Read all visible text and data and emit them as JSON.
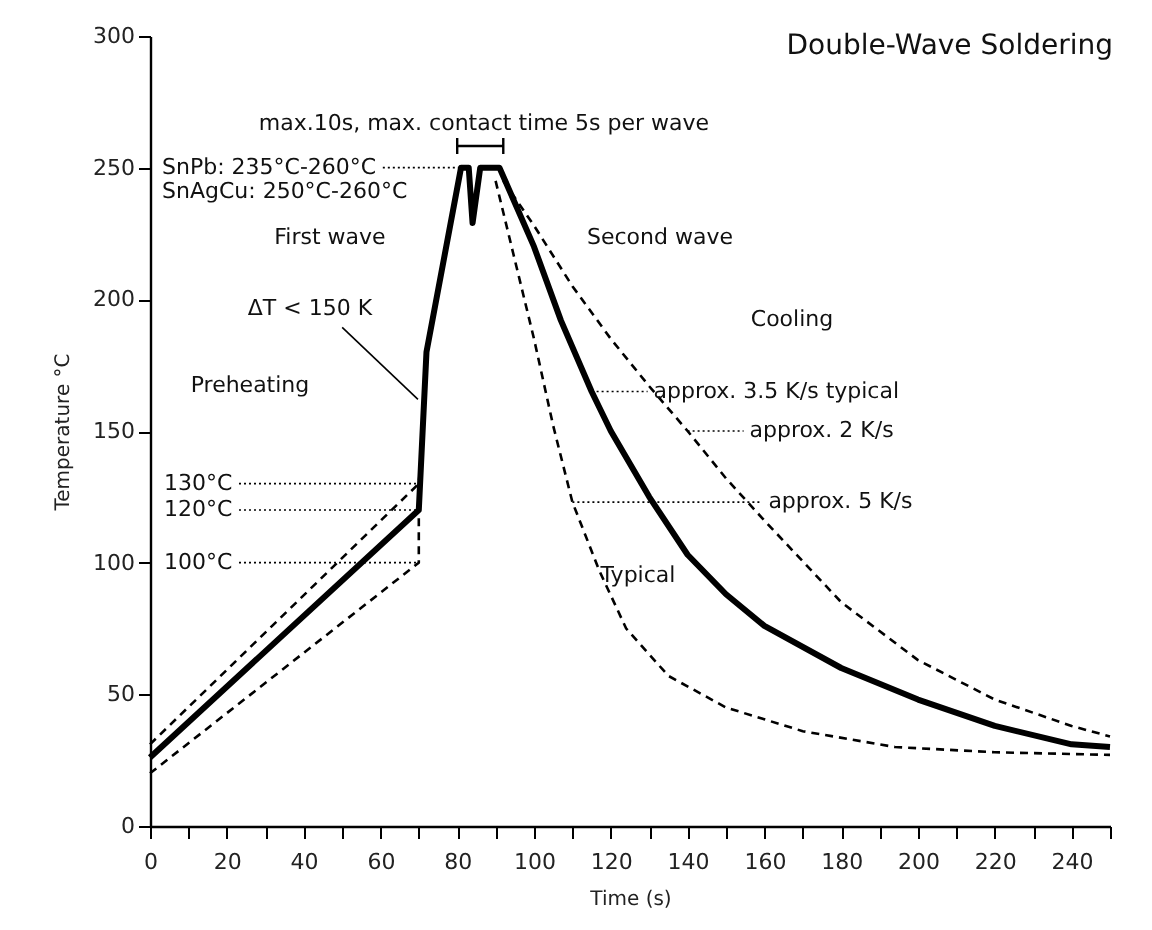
{
  "chart_data": {
    "type": "line",
    "title": "Double-Wave Soldering",
    "xlabel": "Time (s)",
    "ylabel": "Temperature °C",
    "xlim": [
      0,
      250
    ],
    "ylim": [
      0,
      300
    ],
    "xticks": [
      0,
      {
        "value": 10,
        "label": null
      },
      20,
      {
        "value": 30,
        "label": null
      },
      40,
      {
        "value": 50,
        "label": null
      },
      60,
      {
        "value": 70,
        "label": null
      },
      80,
      {
        "value": 90,
        "label": null
      },
      100,
      {
        "value": 110,
        "label": null
      },
      120,
      {
        "value": 130,
        "label": null
      },
      140,
      {
        "value": 150,
        "label": null
      },
      160,
      {
        "value": 170,
        "label": null
      },
      180,
      {
        "value": 190,
        "label": null
      },
      200,
      {
        "value": 210,
        "label": null
      },
      220,
      {
        "value": 230,
        "label": null
      },
      240,
      {
        "value": 250,
        "label": null
      }
    ],
    "yticks": [
      0,
      50,
      100,
      150,
      200,
      250,
      300
    ],
    "grid": false,
    "legend": false,
    "series": [
      {
        "color": "#000000",
        "line_style": "solid",
        "x": [
          0,
          70,
          72,
          81,
          83,
          84,
          86,
          91,
          100,
          107,
          115,
          120,
          130,
          140,
          150,
          160,
          180,
          200,
          220,
          240,
          250
        ],
        "values": [
          26,
          120,
          180,
          250,
          250,
          229,
          250,
          250,
          220,
          192,
          165,
          150,
          125,
          103,
          88,
          76,
          60,
          48,
          38,
          31,
          30
        ]
      },
      {
        "color": "#000000",
        "line_style": "dashed",
        "x": [
          0,
          70,
          71
        ],
        "values": [
          31,
          130,
          150
        ]
      },
      {
        "color": "#000000",
        "line_style": "dashed",
        "x": [
          0,
          70,
          70
        ],
        "values": [
          20,
          100,
          120
        ]
      },
      {
        "color": "#000000",
        "line_style": "dashed",
        "x": [
          92,
          100,
          110,
          120,
          130,
          140,
          150,
          160,
          180,
          200,
          220,
          240,
          250
        ],
        "values": [
          245,
          228,
          205,
          185,
          167,
          150,
          132,
          116,
          85,
          63,
          48,
          38,
          34
        ]
      },
      {
        "color": "#000000",
        "line_style": "dashed",
        "x": [
          90,
          95,
          100,
          105,
          110,
          117,
          124,
          135,
          150,
          170,
          194,
          220,
          250
        ],
        "values": [
          245,
          215,
          185,
          152,
          123,
          97,
          75,
          57,
          45,
          36,
          30,
          28,
          27
        ]
      }
    ],
    "annotations": [
      "SnPb: 235°C-260°C",
      "SnAgCu: 250°C-260°C",
      "max.10s, max. contact time 5s per wave",
      "First wave",
      {
        "text": "ΔT < 150 K",
        "x": 70.3,
        "y": 162
      },
      "Preheating",
      "Second wave",
      "Cooling",
      {
        "text": "approx. 3.5 K/s typical",
        "x": 115,
        "y": 165
      },
      {
        "text": "approx. 2 K/s",
        "x": 140,
        "y": 150
      },
      {
        "text": "approx. 5 K/s",
        "x": 110,
        "y": 123
      },
      "Typical",
      {
        "text": "130°C",
        "x": 70,
        "y": 130
      },
      {
        "text": "120°C",
        "x": 70,
        "y": 120
      },
      {
        "text": "100°C",
        "x": 70,
        "y": 100
      }
    ]
  }
}
